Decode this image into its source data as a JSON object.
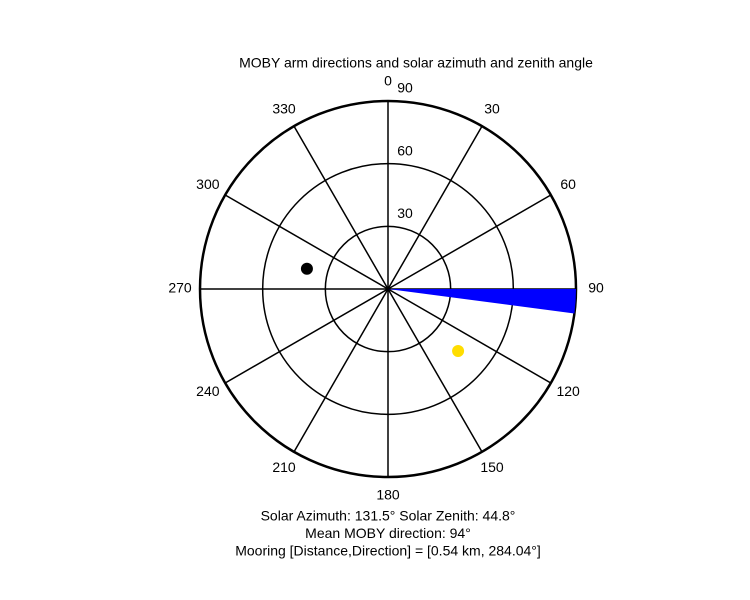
{
  "chart_data": {
    "type": "polar",
    "title": "MOBY arm directions and solar azimuth and zenith angle",
    "rlim": [
      0,
      90
    ],
    "rticks": [
      30,
      60,
      90
    ],
    "theta_ticks": [
      0,
      30,
      60,
      90,
      120,
      150,
      180,
      210,
      240,
      270,
      300,
      330
    ],
    "wedge": {
      "theta": [
        90,
        97.5
      ],
      "r": 90,
      "color": "#0000ff"
    },
    "points": [
      {
        "theta": 131.5,
        "r": 44.8,
        "color": "#ffdd00"
      },
      {
        "theta": 284,
        "r": 40,
        "color": "#000000"
      }
    ],
    "annotations": [
      "Solar Azimuth: 131.5°   Solar Zenith: 44.8°",
      "Mean MOBY direction: 94°",
      "Mooring [Distance,Direction] = [0.54 km, 284.04°]"
    ]
  }
}
